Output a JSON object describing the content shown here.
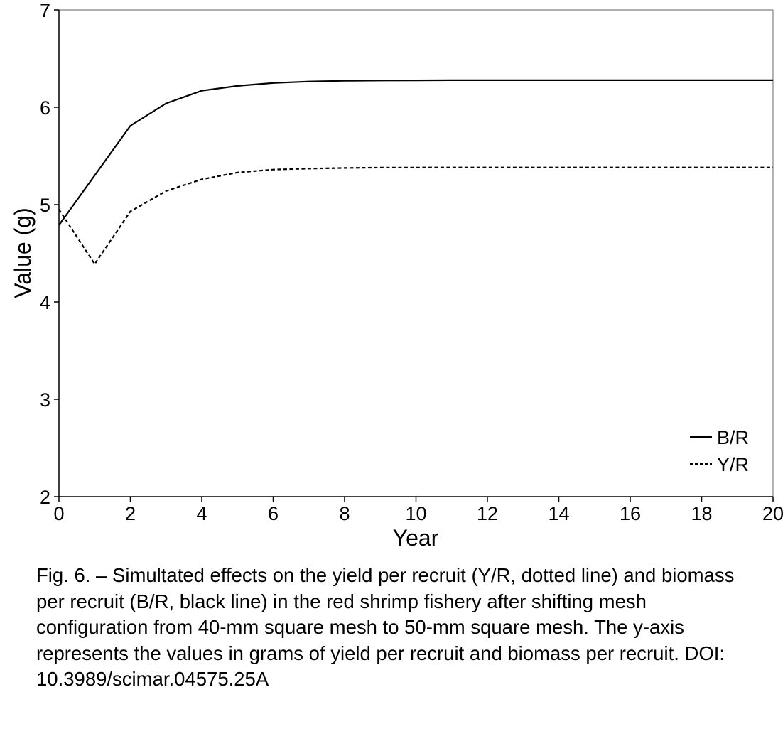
{
  "chart_data": {
    "type": "line",
    "title": "",
    "xlabel": "Year",
    "ylabel": "Value (g)",
    "xlim": [
      0,
      20
    ],
    "ylim": [
      2,
      7
    ],
    "xticks": [
      0,
      2,
      4,
      6,
      8,
      10,
      12,
      14,
      16,
      18,
      20
    ],
    "yticks": [
      2,
      3,
      4,
      5,
      6,
      7
    ],
    "grid": false,
    "legend_position": "bottom-right",
    "series": [
      {
        "name": "B/R",
        "style": "solid",
        "color": "#000000",
        "x": [
          0,
          1,
          2,
          3,
          4,
          5,
          6,
          7,
          8,
          9,
          10,
          11,
          12,
          13,
          14,
          15,
          16,
          17,
          18,
          19,
          20
        ],
        "y": [
          4.79,
          5.3,
          5.81,
          6.04,
          6.17,
          6.22,
          6.25,
          6.265,
          6.272,
          6.275,
          6.277,
          6.278,
          6.278,
          6.278,
          6.278,
          6.278,
          6.278,
          6.278,
          6.278,
          6.278,
          6.278
        ]
      },
      {
        "name": "Y/R",
        "style": "dotted",
        "color": "#000000",
        "x": [
          0,
          1,
          2,
          3,
          4,
          5,
          6,
          7,
          8,
          9,
          10,
          11,
          12,
          13,
          14,
          15,
          16,
          17,
          18,
          19,
          20
        ],
        "y": [
          4.95,
          4.39,
          4.93,
          5.14,
          5.26,
          5.33,
          5.36,
          5.37,
          5.377,
          5.38,
          5.381,
          5.382,
          5.382,
          5.382,
          5.382,
          5.382,
          5.382,
          5.382,
          5.382,
          5.382,
          5.382
        ]
      }
    ]
  },
  "caption": "Fig. 6. – Simultated effects on the yield per recruit (Y/R, dotted line) and biomass per recruit (B/R, black line) in the red shrimp fishery after shifting mesh configuration from 40-mm square mesh to 50-mm square mesh. The y-axis represents the values in grams of yield per recruit and biomass per recruit. DOI: 10.3989/scimar.04575.25A"
}
